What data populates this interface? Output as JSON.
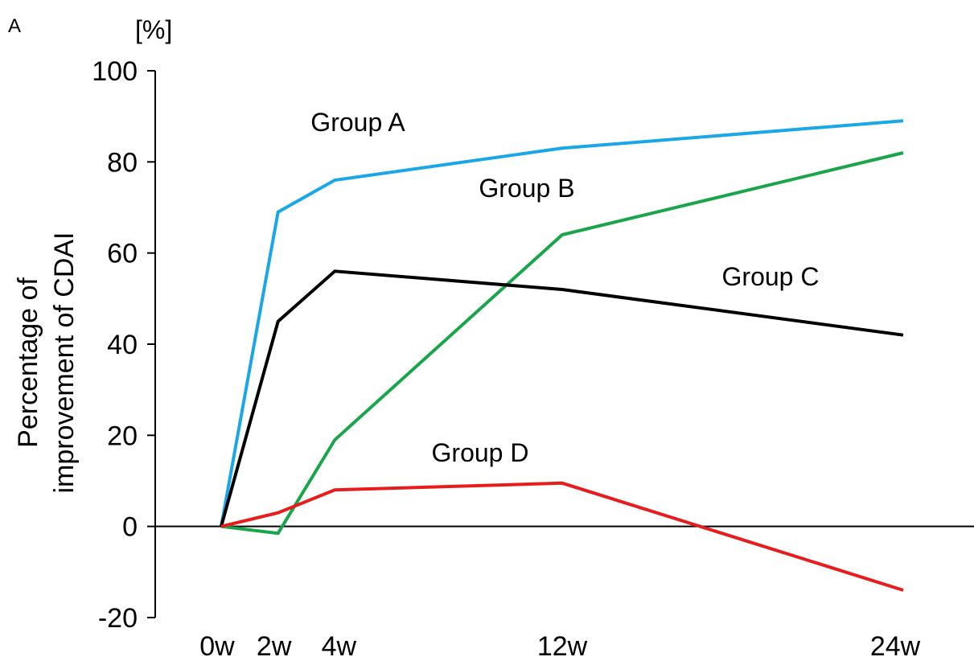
{
  "panel_label": "A",
  "chart_data": {
    "type": "line",
    "unit": "[%]",
    "ylabel_lines": [
      "Percentage of",
      "improvement of CDAI"
    ],
    "xlabel": "",
    "ylim": [
      -20,
      100
    ],
    "yticks": [
      -20,
      0,
      20,
      40,
      60,
      80,
      100
    ],
    "xlim": [
      0,
      24
    ],
    "x": [
      0,
      2,
      4,
      12,
      24
    ],
    "xtick_labels": [
      "0w",
      "2w",
      "4w",
      "12w",
      "24w"
    ],
    "grid": false,
    "series": [
      {
        "name": "Group A",
        "color": "#1aa7e8",
        "values": [
          0,
          69,
          76,
          83,
          89
        ]
      },
      {
        "name": "Group B",
        "color": "#19a64a",
        "values": [
          0,
          -1.5,
          19,
          64,
          82
        ]
      },
      {
        "name": "Group C",
        "color": "#000000",
        "values": [
          0,
          45,
          56,
          52,
          42
        ]
      },
      {
        "name": "Group D",
        "color": "#e81c1c",
        "values": [
          0,
          3,
          8,
          9.5,
          -14
        ]
      }
    ]
  }
}
